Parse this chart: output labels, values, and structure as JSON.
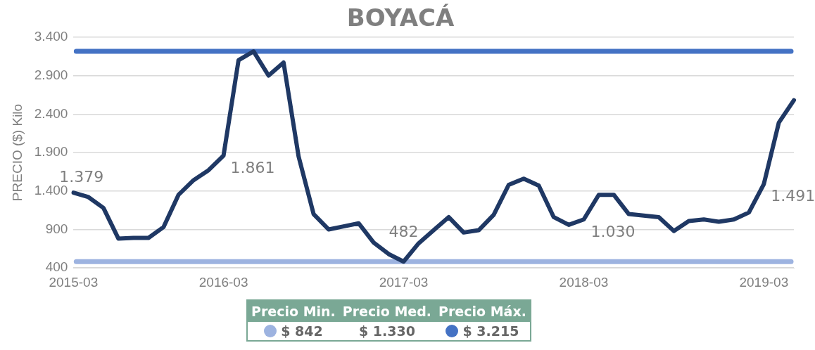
{
  "chart_data": {
    "type": "line",
    "title": "BOYACÁ",
    "ylabel": "PRECIO ($) Kilo",
    "categories": [
      "2015-03",
      null,
      null,
      null,
      null,
      null,
      null,
      null,
      null,
      null,
      "2016-03",
      null,
      null,
      null,
      null,
      null,
      null,
      null,
      null,
      null,
      null,
      null,
      "2017-03",
      null,
      null,
      null,
      null,
      null,
      null,
      null,
      null,
      null,
      null,
      null,
      "2018-03",
      null,
      null,
      null,
      null,
      null,
      null,
      null,
      null,
      null,
      null,
      null,
      "2019-03",
      null,
      null
    ],
    "series": [
      {
        "color": "#1f3864",
        "values": [
          1379,
          1320,
          1180,
          780,
          790,
          790,
          930,
          1350,
          1540,
          1670,
          1861,
          3100,
          3215,
          2900,
          3070,
          1850,
          1100,
          900,
          940,
          980,
          730,
          580,
          482,
          720,
          890,
          1060,
          860,
          890,
          1090,
          1480,
          1560,
          1470,
          1060,
          960,
          1030,
          1350,
          1350,
          1100,
          1080,
          1060,
          880,
          1010,
          1030,
          1000,
          1030,
          1120,
          1491,
          2290,
          2580
        ],
        "value_labels": [
          "1.379",
          null,
          null,
          null,
          null,
          null,
          null,
          null,
          null,
          null,
          "1.861",
          null,
          null,
          null,
          null,
          null,
          null,
          null,
          null,
          null,
          null,
          null,
          "482",
          null,
          null,
          null,
          null,
          null,
          null,
          null,
          null,
          null,
          null,
          null,
          "1.030",
          null,
          null,
          null,
          null,
          null,
          null,
          null,
          null,
          null,
          null,
          null,
          "1.491",
          null,
          null
        ]
      }
    ],
    "ylim": [
      400,
      3400
    ],
    "yticks": [
      {
        "value": 400,
        "label": "400"
      },
      {
        "value": 900,
        "label": "900"
      },
      {
        "value": 1400,
        "label": "1.400"
      },
      {
        "value": 1900,
        "label": "1.900"
      },
      {
        "value": 2400,
        "label": "2.400"
      },
      {
        "value": 2900,
        "label": "2.900"
      },
      {
        "value": 3400,
        "label": "3.400"
      }
    ],
    "ref_lines": [
      {
        "axis": "y",
        "value": 482,
        "color": "#9db3e0"
      },
      {
        "axis": "y",
        "value": 3215,
        "color": "#4472c4"
      }
    ],
    "annotations": [
      "Precio Min.",
      "Precio Med.",
      "Precio Máx.",
      "$ 842",
      "$ 1.330",
      "$ 3.215"
    ],
    "grid": "y",
    "legend": false,
    "marker": "none",
    "line_style": "solid"
  }
}
